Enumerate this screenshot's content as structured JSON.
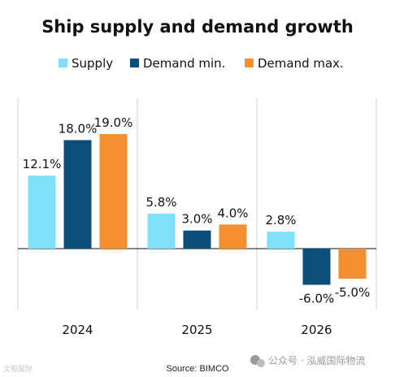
{
  "chart_data": {
    "type": "bar",
    "title": "Ship supply and demand growth",
    "categories": [
      "2024",
      "2025",
      "2026"
    ],
    "series": [
      {
        "name": "Supply",
        "values": [
          12.1,
          5.8,
          2.8
        ],
        "color": "#7FE0FA",
        "labels": [
          "12.1%",
          "5.8%",
          "2.8%"
        ]
      },
      {
        "name": "Demand min.",
        "values": [
          18.0,
          3.0,
          -6.0
        ],
        "color": "#0B4F79",
        "labels": [
          "18.0%",
          "3.0%",
          "-6.0%"
        ]
      },
      {
        "name": "Demand max.",
        "values": [
          19.0,
          4.0,
          -5.0
        ],
        "color": "#F4902F",
        "labels": [
          "19.0%",
          "4.0%",
          "-5.0%"
        ]
      }
    ],
    "ylim": [
      -10,
      25
    ],
    "grid": false,
    "legend_position": "top",
    "unit": "%"
  },
  "source": "Source: BIMCO",
  "watermark_left": "文股国际",
  "watermark_right": "公众号 · 泓威国际物流"
}
